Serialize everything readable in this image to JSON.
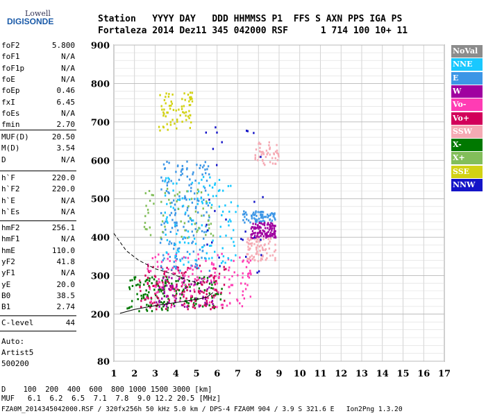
{
  "logo": {
    "line1": "Lowell",
    "line2": "DIGISONDE"
  },
  "header": {
    "line1": "Station   YYYY DAY   DDD HHMMSS P1  FFS S AXN PPS IGA PS",
    "line2": "Fortaleza 2014 Dez11 345 042000 RSF      1 714 100 10+ 11"
  },
  "panel": {
    "group1": [
      {
        "key": "foF2",
        "value": "5.800"
      },
      {
        "key": "foF1",
        "value": "N/A"
      },
      {
        "key": "foF1p",
        "value": "N/A"
      },
      {
        "key": "foE",
        "value": "N/A"
      },
      {
        "key": "foEp",
        "value": "0.46"
      },
      {
        "key": "fxI",
        "value": "6.45"
      },
      {
        "key": "foEs",
        "value": "N/A"
      },
      {
        "key": "fmin",
        "value": "2.70"
      }
    ],
    "group2": [
      {
        "key": "MUF(D)",
        "value": "20.50"
      },
      {
        "key": "M(D)",
        "value": "3.54"
      },
      {
        "key": "D",
        "value": "N/A"
      }
    ],
    "group3": [
      {
        "key": "h`F",
        "value": "220.0"
      },
      {
        "key": "h`F2",
        "value": "220.0"
      },
      {
        "key": "h`E",
        "value": "N/A"
      },
      {
        "key": "h`Es",
        "value": "N/A"
      }
    ],
    "group4": [
      {
        "key": "hmF2",
        "value": "256.1"
      },
      {
        "key": "hmF1",
        "value": "N/A"
      },
      {
        "key": "hmE",
        "value": "110.0"
      },
      {
        "key": "yF2",
        "value": "41.8"
      },
      {
        "key": "yF1",
        "value": "N/A"
      },
      {
        "key": "yE",
        "value": "20.0"
      },
      {
        "key": "B0",
        "value": "38.5"
      },
      {
        "key": "B1",
        "value": "2.74"
      }
    ],
    "group5": [
      {
        "key": "C-level",
        "value": "44"
      }
    ],
    "auto": [
      "Auto:",
      "Artist5",
      "500200"
    ]
  },
  "legend": [
    {
      "label": "NoVal",
      "color": "#8c8c8c"
    },
    {
      "label": "NNE",
      "color": "#19c8ff"
    },
    {
      "label": "E",
      "color": "#3c96e6"
    },
    {
      "label": "W",
      "color": "#a000a0"
    },
    {
      "label": "Vo-",
      "color": "#ff3cb4"
    },
    {
      "label": "Vo+",
      "color": "#d2005a"
    },
    {
      "label": "SSW",
      "color": "#f5aab4"
    },
    {
      "label": "X-",
      "color": "#007800"
    },
    {
      "label": "X+",
      "color": "#82be5a"
    },
    {
      "label": "SSE",
      "color": "#d2d214"
    },
    {
      "label": "NNW",
      "color": "#1414c8"
    }
  ],
  "footer": {
    "line1": "D    100  200  400  600  800 1000 1500 3000 [km]",
    "line2": "MUF   6.1  6.2  6.5  7.1  7.8  9.0 12.2 20.5 [MHz]",
    "line3": "FZA0M_2014345042000.RSF / 320fx256h 50 kHz 5.0 km / DPS-4 FZA0M 904 / 3.9 S 321.6 E   Ion2Png 1.3.20"
  },
  "chart_data": {
    "type": "scatter",
    "title": "",
    "xlabel": "",
    "ylabel": "",
    "xlim": [
      1,
      17
    ],
    "ylim": [
      80,
      900
    ],
    "xticks": [
      1,
      2,
      3,
      4,
      5,
      6,
      7,
      8,
      9,
      10,
      11,
      12,
      13,
      14,
      15,
      16,
      17
    ],
    "yticks": [
      80,
      200,
      300,
      400,
      500,
      600,
      700,
      800,
      900
    ],
    "grid": true,
    "legend_position": "right",
    "x_mode": "frequency MHz (log-like spacing)",
    "clusters": [
      {
        "series": "X-",
        "x": [
          1.6,
          6.2
        ],
        "y": [
          210,
          300
        ],
        "count": 160
      },
      {
        "series": "Vo+",
        "x": [
          2.2,
          6.4
        ],
        "y": [
          215,
          330
        ],
        "count": 140
      },
      {
        "series": "Vo-",
        "x": [
          2.5,
          7.6
        ],
        "y": [
          220,
          360
        ],
        "count": 140
      },
      {
        "series": "W",
        "x": [
          3.0,
          5.8
        ],
        "y": [
          220,
          300
        ],
        "count": 60
      },
      {
        "series": "E",
        "x": [
          3.2,
          5.6
        ],
        "y": [
          315,
          600
        ],
        "count": 170
      },
      {
        "series": "E",
        "x": [
          7.2,
          8.8
        ],
        "y": [
          440,
          470
        ],
        "count": 70
      },
      {
        "series": "NNE",
        "x": [
          3.4,
          7.0
        ],
        "y": [
          330,
          560
        ],
        "count": 120
      },
      {
        "series": "W",
        "x": [
          7.6,
          8.8
        ],
        "y": [
          400,
          440
        ],
        "count": 110
      },
      {
        "series": "SSW",
        "x": [
          7.4,
          8.8
        ],
        "y": [
          340,
          400
        ],
        "count": 80
      },
      {
        "series": "SSW",
        "x": [
          7.8,
          9.0
        ],
        "y": [
          590,
          650
        ],
        "count": 50
      },
      {
        "series": "SSE",
        "x": [
          3.0,
          4.8
        ],
        "y": [
          680,
          780
        ],
        "count": 70
      },
      {
        "series": "X+",
        "x": [
          2.4,
          5.8
        ],
        "y": [
          400,
          530
        ],
        "count": 60
      },
      {
        "series": "NNW",
        "x": [
          5.4,
          8.2
        ],
        "y": [
          300,
          700
        ],
        "count": 30
      }
    ],
    "profile_solid": {
      "x": [
        1.3,
        2.0,
        3.0,
        4.0,
        5.0,
        5.5,
        5.8
      ],
      "y": [
        202,
        212,
        222,
        230,
        238,
        244,
        256
      ]
    },
    "profile_dashed": {
      "x": [
        1.0,
        1.6,
        2.2,
        3.0,
        3.8,
        4.5,
        5.0,
        5.3
      ],
      "y": [
        410,
        365,
        340,
        318,
        305,
        290,
        282,
        278
      ]
    }
  }
}
